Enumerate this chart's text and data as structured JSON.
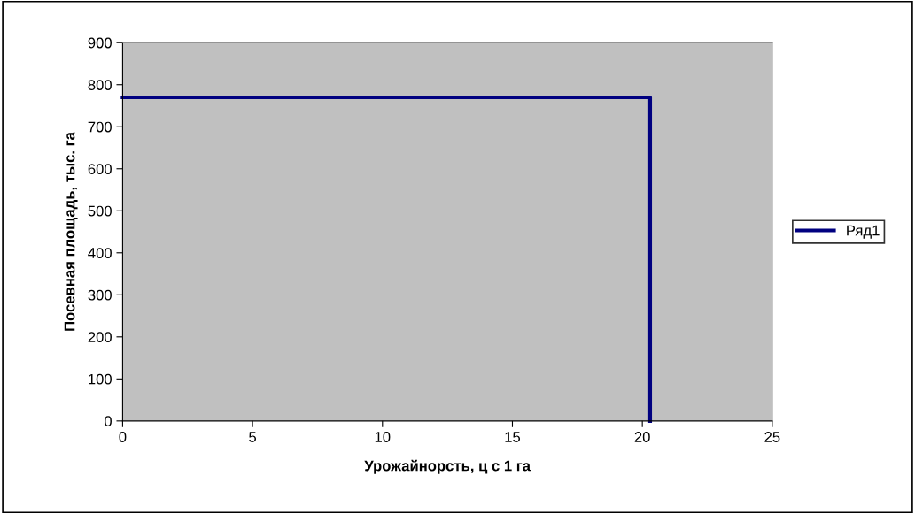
{
  "chart_data": {
    "type": "step",
    "xlabel": "Урожайнорсть, ц с 1 га",
    "ylabel": "Посевная площадь, тыс. га",
    "x": [
      0,
      20.3
    ],
    "series": [
      {
        "name": "Ряд1",
        "color": "#000080",
        "values": [
          770,
          0
        ]
      }
    ],
    "xlim": [
      0,
      25
    ],
    "xticks": [
      0,
      5,
      10,
      15,
      20,
      25
    ],
    "ylim": [
      0,
      900
    ],
    "yticks": [
      0,
      100,
      200,
      300,
      400,
      500,
      600,
      700,
      800,
      900
    ],
    "grid": false,
    "legend": "right",
    "marker": "none",
    "line_style": "solid"
  }
}
